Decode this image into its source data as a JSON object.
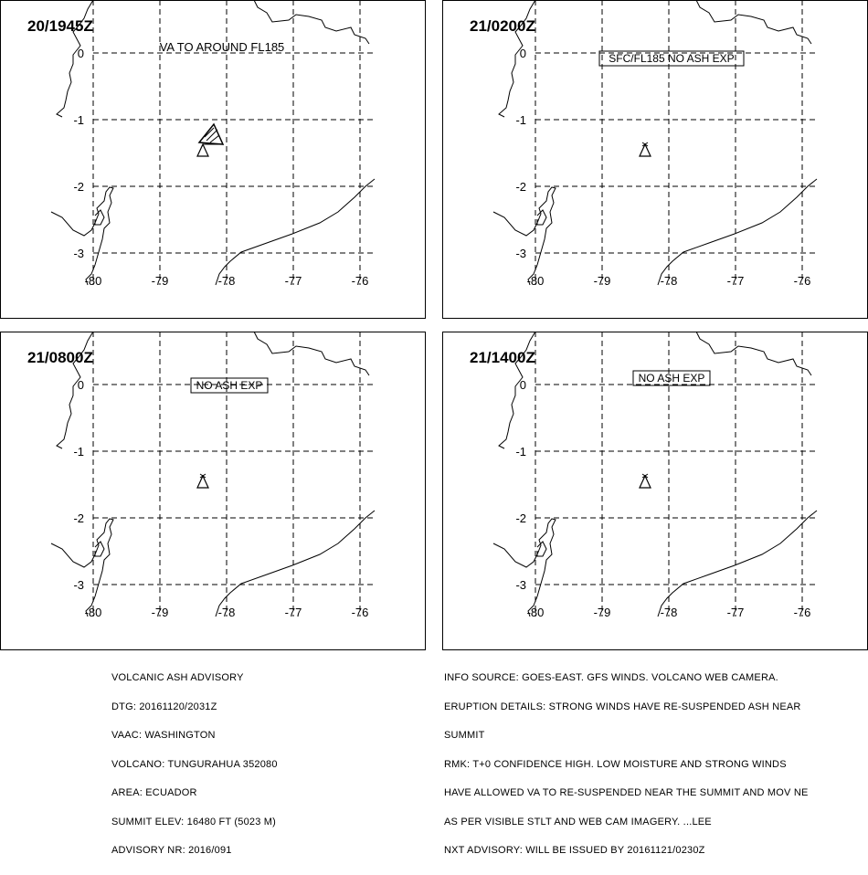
{
  "panels": [
    {
      "time_label": "20/1945Z",
      "annotation": "VA TO AROUND FL185",
      "annotation_boxed": false,
      "ash_cloud": true
    },
    {
      "time_label": "21/0200Z",
      "annotation": "SFC/FL185 NO ASH EXP",
      "annotation_boxed": true,
      "ash_cloud": false
    },
    {
      "time_label": "21/0800Z",
      "annotation": "NO ASH EXP",
      "annotation_boxed": true,
      "ash_cloud": false
    },
    {
      "time_label": "21/1400Z",
      "annotation": "NO ASH EXP",
      "annotation_boxed": true,
      "ash_cloud": false
    }
  ],
  "map": {
    "lon_labels": [
      "-80",
      "-79",
      "-78",
      "-77",
      "-76"
    ],
    "lat_labels": [
      "0",
      "-1",
      "-2",
      "-3"
    ],
    "volcano_icon": "volcano-triangle-icon",
    "colors": {
      "line": "#000000",
      "background": "#ffffff"
    }
  },
  "advisory": {
    "lines": [
      "VOLCANIC ASH ADVISORY",
      "DTG: 20161120/2031Z",
      "VAAC: WASHINGTON",
      "VOLCANO: TUNGURAHUA 352080",
      "AREA: ECUADOR",
      "SUMMIT ELEV: 16480 FT (5023 M)",
      "ADVISORY NR: 2016/091"
    ]
  },
  "remarks": {
    "lines": [
      "INFO SOURCE: GOES-EAST. GFS WINDS. VOLCANO WEB CAMERA.",
      "ERUPTION DETAILS: STRONG WINDS HAVE RE-SUSPENDED ASH NEAR",
      "SUMMIT",
      "RMK: T+0 CONFIDENCE HIGH. LOW MOISTURE AND STRONG WINDS",
      "HAVE ALLOWED VA TO RE-SUSPENDED NEAR THE SUMMIT AND MOV NE",
      "AS PER VISIBLE STLT AND WEB CAM IMAGERY. ...LEE",
      "NXT ADVISORY: WILL BE ISSUED BY 20161121/0230Z"
    ]
  }
}
